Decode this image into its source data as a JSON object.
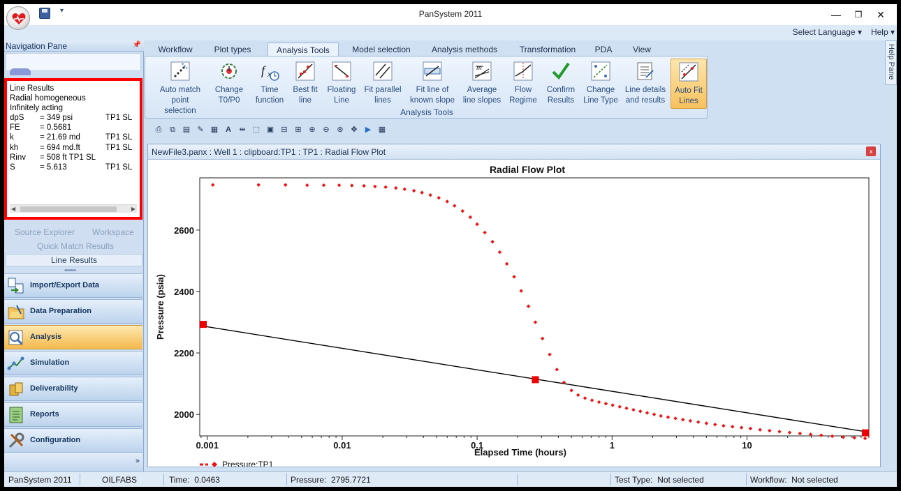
{
  "window": {
    "title": "PanSystem 2011"
  },
  "langbar": {
    "select_language": "Select Language",
    "help": "Help"
  },
  "help_pane": {
    "label": "Help Pane"
  },
  "nav": {
    "title": "Navigation Pane",
    "results": {
      "heading": [
        "Line Results",
        "Radial homogeneous",
        "Infinitely acting"
      ],
      "rows": [
        {
          "k": "dpS",
          "v": "= 349  psi",
          "s": "TP1 SL"
        },
        {
          "k": "FE",
          "v": "= 0.5681",
          "s": ""
        },
        {
          "k": "k",
          "v": "= 21.69  md",
          "s": "TP1 SL"
        },
        {
          "k": "kh",
          "v": "= 694  md.ft",
          "s": "TP1 SL"
        },
        {
          "k": "Rinv",
          "v": "= 508  ft    TP1 SL",
          "s": ""
        },
        {
          "k": "S",
          "v": "= 5.613",
          "s": "TP1 SL"
        }
      ]
    },
    "tabs": {
      "source_explorer": "Source Explorer",
      "workspace": "Workspace",
      "quick_match": "Quick Match Results",
      "line_results": "Line Results"
    },
    "buttons": [
      {
        "label": "Import/Export Data",
        "icon": "import-export-icon"
      },
      {
        "label": "Data Preparation",
        "icon": "data-preparation-icon"
      },
      {
        "label": "Analysis",
        "icon": "analysis-icon",
        "active": true
      },
      {
        "label": "Simulation",
        "icon": "simulation-icon"
      },
      {
        "label": "Deliverability",
        "icon": "deliverability-icon"
      },
      {
        "label": "Reports",
        "icon": "reports-icon"
      },
      {
        "label": "Configuration",
        "icon": "configuration-icon"
      }
    ]
  },
  "ribbon": {
    "tabs": [
      "Workflow",
      "Plot types",
      "Analysis Tools",
      "Model selection",
      "Analysis methods",
      "Transformation",
      "PDA",
      "View"
    ],
    "active_tab": "Analysis Tools",
    "group_label": "Analysis Tools",
    "buttons": [
      {
        "label": "Auto match\npoint selection",
        "icon": "auto-match-icon"
      },
      {
        "label": "Change\nT0/P0",
        "icon": "change-t0p0-icon"
      },
      {
        "label": "Time\nfunction",
        "icon": "time-function-icon"
      },
      {
        "label": "Best fit\nline",
        "icon": "best-fit-line-icon"
      },
      {
        "label": "Floating\nLine",
        "icon": "floating-line-icon"
      },
      {
        "label": "Fit parallel\nlines",
        "icon": "fit-parallel-lines-icon"
      },
      {
        "label": "Fit line of\nknown slope",
        "icon": "known-slope-icon"
      },
      {
        "label": "Average\nline slopes",
        "icon": "average-slopes-icon"
      },
      {
        "label": "Flow\nRegime",
        "icon": "flow-regime-icon"
      },
      {
        "label": "Confirm\nResults",
        "icon": "confirm-results-icon"
      },
      {
        "label": "Change\nLine Type",
        "icon": "change-line-type-icon"
      },
      {
        "label": "Line details\nand results",
        "icon": "line-details-icon"
      },
      {
        "label": "Auto Fit\nLines",
        "icon": "auto-fit-lines-icon",
        "active": true
      }
    ]
  },
  "plot_window": {
    "caption": "NewFile3.panx : Well 1 : clipboard:TP1 : TP1 : Radial Flow Plot",
    "close": "x"
  },
  "chart_data": {
    "type": "scatter",
    "title": "Radial Flow Plot",
    "xlabel": "Elapsed Time (hours)",
    "ylabel": "Pressure (psia)",
    "xscale": "log",
    "xlim": [
      0.00088,
      80
    ],
    "ylim": [
      1930,
      2770
    ],
    "x_ticks": [
      0.001,
      0.01,
      0.1,
      1,
      10
    ],
    "x_tick_labels": [
      "0.001",
      "0.01",
      "0.1",
      "1",
      "10"
    ],
    "y_ticks": [
      2000,
      2200,
      2400,
      2600
    ],
    "y_tick_labels": [
      "2000",
      "2200",
      "2400",
      "2600"
    ],
    "grid": false,
    "legend": {
      "placement": "bottom-left"
    },
    "series": [
      {
        "name": "Pressure:TP1",
        "color": "#ee1111",
        "marker": "diamond",
        "x": [
          0.0011,
          0.0024,
          0.0038,
          0.0055,
          0.0073,
          0.0095,
          0.0118,
          0.0145,
          0.0175,
          0.021,
          0.025,
          0.029,
          0.034,
          0.039,
          0.045,
          0.052,
          0.06,
          0.068,
          0.078,
          0.089,
          0.1,
          0.114,
          0.13,
          0.147,
          0.166,
          0.188,
          0.212,
          0.24,
          0.27,
          0.305,
          0.345,
          0.39,
          0.44,
          0.5,
          0.56,
          0.63,
          0.71,
          0.8,
          0.9,
          1.01,
          1.14,
          1.28,
          1.44,
          1.62,
          1.82,
          2.05,
          2.3,
          2.6,
          2.95,
          3.35,
          3.8,
          4.35,
          5.0,
          5.8,
          6.7,
          7.8,
          9.1,
          10.6,
          12.5,
          14.7,
          17.4,
          20.7,
          24.7,
          29.6,
          35.5,
          42.8,
          51.7,
          62.5,
          75.0
        ],
        "y": [
          2747,
          2747,
          2747,
          2746,
          2746,
          2746,
          2745,
          2744,
          2742,
          2740,
          2737,
          2733,
          2728,
          2722,
          2714,
          2705,
          2693,
          2679,
          2662,
          2642,
          2619,
          2592,
          2562,
          2528,
          2490,
          2448,
          2402,
          2352,
          2300,
          2247,
          2195,
          2146,
          2104,
          2078,
          2063,
          2053,
          2046,
          2040,
          2035,
          2030,
          2025,
          2020,
          2015,
          2010,
          2005,
          2000,
          1995,
          1991,
          1987,
          1983,
          1979,
          1975,
          1971,
          1967,
          1963,
          1960,
          1957,
          1954,
          1950,
          1947,
          1944,
          1941,
          1938,
          1935,
          1932,
          1929,
          1926,
          1924,
          1922
        ]
      },
      {
        "name": "",
        "type": "line",
        "color": "#000000",
        "x": [
          0.00088,
          80
        ],
        "y": [
          2289,
          1942
        ]
      },
      {
        "name": "",
        "type": "handles",
        "color": "#ee0000",
        "marker": "square",
        "x": [
          0.00088,
          0.27,
          80
        ],
        "y": [
          2293,
          2113,
          1940
        ]
      }
    ]
  },
  "statusbar": {
    "app": "PanSystem 2011",
    "user": "OILFABS",
    "time_label": "Time:",
    "time_value": "0.0463",
    "pressure_label": "Pressure:",
    "pressure_value": "2795.7721",
    "test_type_label": "Test Type:",
    "test_type_value": "Not selected",
    "workflow_label": "Workflow:",
    "workflow_value": "Not selected"
  }
}
